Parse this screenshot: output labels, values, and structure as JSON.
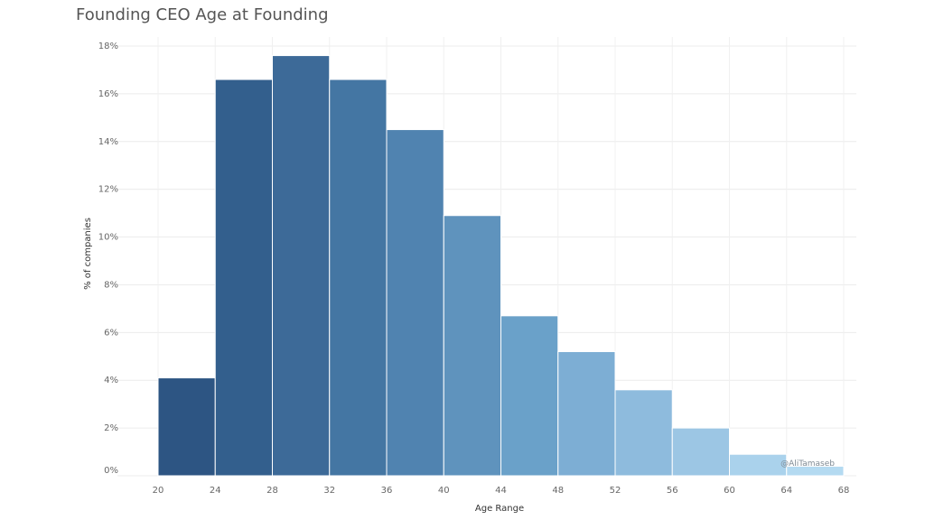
{
  "chart_data": {
    "type": "bar",
    "title": "Founding CEO Age at Founding",
    "xlabel": "Age Range",
    "ylabel": "% of companies",
    "bin_edges": [
      20,
      24,
      28,
      32,
      36,
      40,
      44,
      48,
      52,
      56,
      60,
      64,
      68
    ],
    "values": [
      4.1,
      16.6,
      17.6,
      16.6,
      14.5,
      10.9,
      6.7,
      5.2,
      3.6,
      2.0,
      0.9,
      0.4
    ],
    "ylim": [
      0,
      18
    ],
    "yticks": [
      "0%",
      "2%",
      "4%",
      "6%",
      "8%",
      "10%",
      "12%",
      "14%",
      "16%",
      "18%"
    ],
    "xticks": [
      "20",
      "24",
      "28",
      "32",
      "36",
      "40",
      "44",
      "48",
      "52",
      "56",
      "60",
      "64",
      "68"
    ],
    "grid": true,
    "bar_colors": [
      "#2d5583",
      "#335f8d",
      "#3d6a98",
      "#4476a3",
      "#5083b0",
      "#5f93bd",
      "#6aa1c9",
      "#7daed4",
      "#8ebbdd",
      "#9cc6e4",
      "#aad2ec",
      "#b4daf1"
    ],
    "watermark": "@AliTamaseb"
  }
}
